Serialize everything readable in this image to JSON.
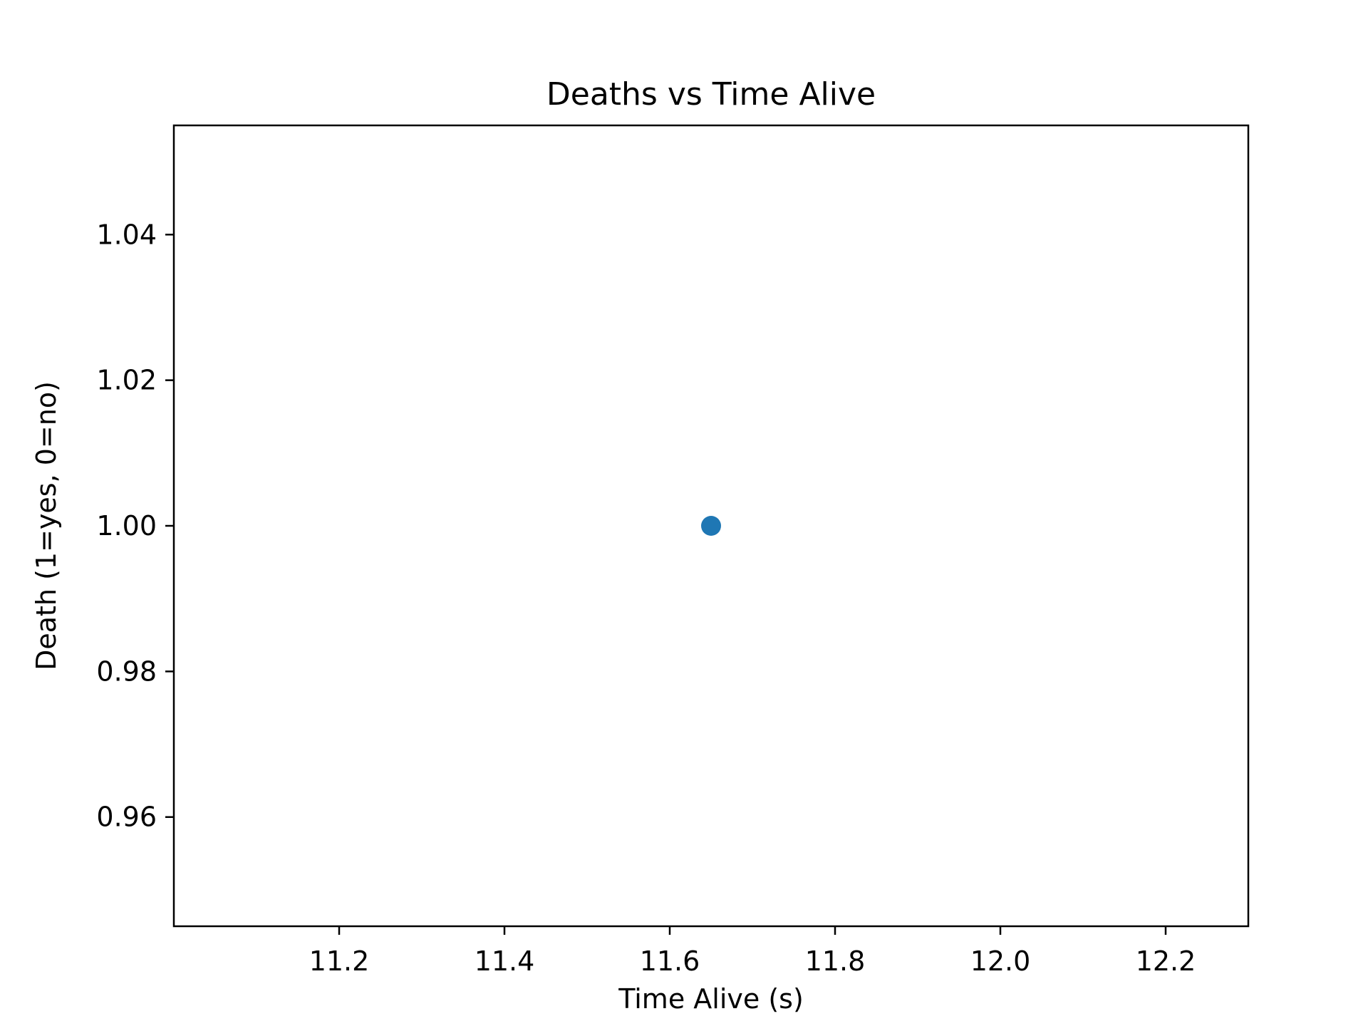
{
  "chart_data": {
    "type": "scatter",
    "title": "Deaths vs Time Alive",
    "xlabel": "Time Alive (s)",
    "ylabel": "Death (1=yes, 0=no)",
    "xlim": [
      11.0,
      12.3
    ],
    "ylim": [
      0.945,
      1.055
    ],
    "x_ticks": [
      11.2,
      11.4,
      11.6,
      11.8,
      12.0,
      12.2
    ],
    "x_tick_labels": [
      "11.2",
      "11.4",
      "11.6",
      "11.8",
      "12.0",
      "12.2"
    ],
    "y_ticks": [
      0.96,
      0.98,
      1.0,
      1.02,
      1.04
    ],
    "y_tick_labels": [
      "0.96",
      "0.98",
      "1.00",
      "1.02",
      "1.04"
    ],
    "points": [
      {
        "x": 11.65,
        "y": 1.0
      }
    ],
    "grid": false,
    "marker_color": "#1f77b4"
  }
}
